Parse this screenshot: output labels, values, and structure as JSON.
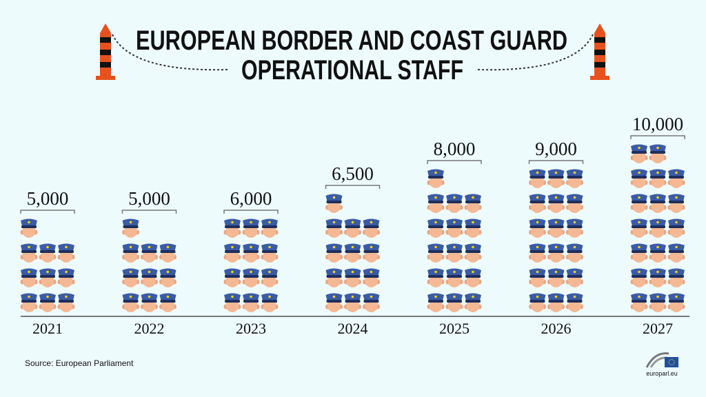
{
  "chart_data": {
    "type": "pictogram",
    "title": [
      "EUROPEAN BORDER AND COAST GUARD",
      "OPERATIONAL STAFF"
    ],
    "categories": [
      "2021",
      "2022",
      "2023",
      "2024",
      "2025",
      "2026",
      "2027"
    ],
    "values": [
      5000,
      5000,
      6000,
      6500,
      8000,
      9000,
      10000
    ],
    "value_labels": [
      "5,000",
      "5,000",
      "6,000",
      "6,500",
      "8,000",
      "9,000",
      "10,000"
    ],
    "color": "#3a5ba6",
    "source": "Source: European Parliament",
    "logo": "europarl.eu"
  }
}
